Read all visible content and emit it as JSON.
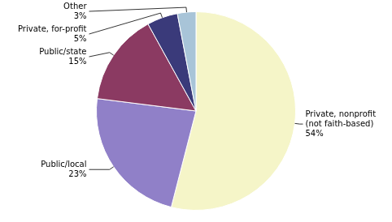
{
  "chart_data": {
    "type": "pie",
    "categories": [
      "Private, nonprofit\n(not faith-based)",
      "Public/local",
      "Public/state",
      "Private, for-profit",
      "Other"
    ],
    "values": [
      54,
      23,
      15,
      5,
      3
    ],
    "value_labels": [
      "54%",
      "23%",
      "15%",
      "5%",
      "3%"
    ],
    "colors": [
      "#F5F5C8",
      "#9080C8",
      "#8B3A62",
      "#3A3A7A",
      "#A8C4D8"
    ]
  }
}
